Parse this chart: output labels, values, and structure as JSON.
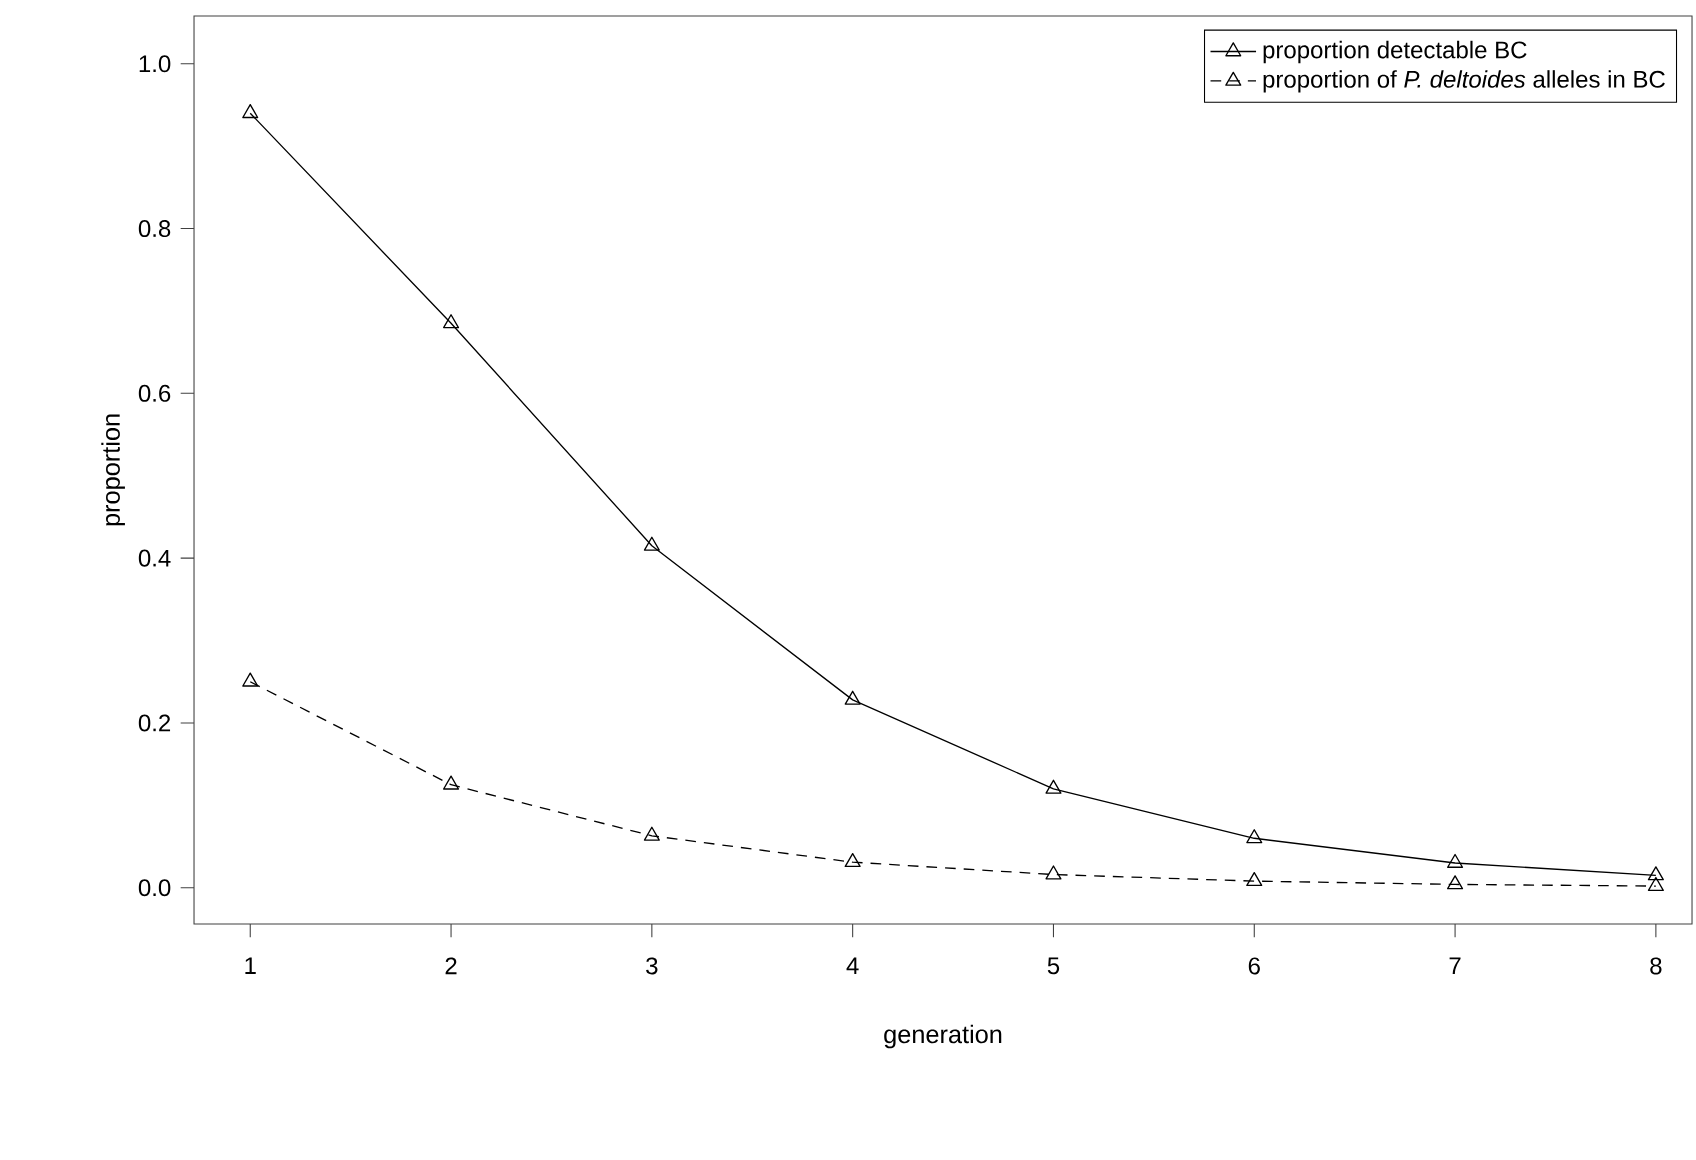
{
  "chart_data": {
    "type": "line",
    "xlabel": "generation",
    "ylabel": "proportion",
    "x": [
      1,
      2,
      3,
      4,
      5,
      6,
      7,
      8
    ],
    "series": [
      {
        "name": "proportion detectable BC",
        "color": "#000000",
        "line_style": "solid",
        "values": [
          0.94,
          0.685,
          0.415,
          0.228,
          0.12,
          0.06,
          0.03,
          0.015
        ]
      },
      {
        "name": "proportion of *P. deltoides* alleles in BC",
        "color": "#000000",
        "line_style": "dashed",
        "values": [
          0.25,
          0.125,
          0.063,
          0.031,
          0.016,
          0.008,
          0.004,
          0.002
        ]
      }
    ],
    "xlim": [
      0.72,
      8.18
    ],
    "ylim": [
      -0.044,
      1.058
    ],
    "xticks": [
      1,
      2,
      3,
      4,
      5,
      6,
      7,
      8
    ],
    "yticks": [
      {
        "value": 0,
        "label": "0.0"
      },
      0.2,
      0.4,
      0.6,
      0.8,
      {
        "value": 1,
        "label": "1.0"
      }
    ],
    "marker": "triangle",
    "grid": false,
    "legend": "top right"
  }
}
